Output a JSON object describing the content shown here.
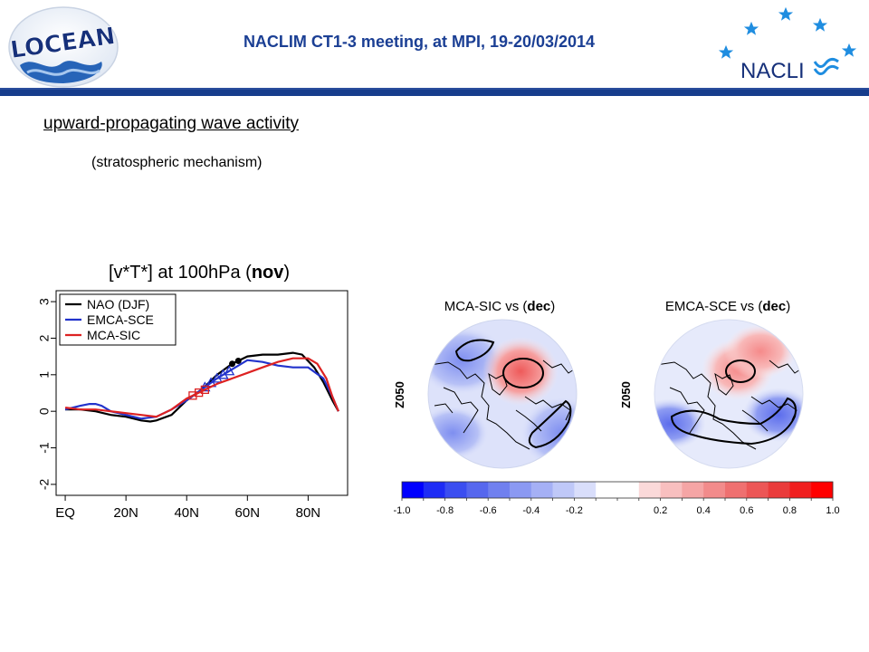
{
  "header": {
    "title": "NACLIM CT1-3 meeting, at MPI, 19-20/03/2014",
    "logo_left_text": "LOCEAN",
    "logo_right_text": "NACLI"
  },
  "slide": {
    "heading": "upward-propagating  wave activity",
    "subheading": "(stratospheric mechanism)"
  },
  "chart_data": [
    {
      "type": "line",
      "title_prefix": "[v*T*] at 100hPa (",
      "title_bold": "nov",
      "title_suffix": ")",
      "xlabel": "",
      "ylabel": "",
      "xlim": [
        -3,
        93
      ],
      "ylim": [
        -2.3,
        3.3
      ],
      "x_tick_values": [
        0,
        20,
        40,
        60,
        80
      ],
      "x_tick_labels": [
        "EQ",
        "20N",
        "40N",
        "60N",
        "80N"
      ],
      "y_tick_values": [
        -2,
        -1,
        0,
        1,
        2,
        3
      ],
      "y_tick_labels": [
        "-2",
        "-1",
        "0",
        "1",
        "2",
        "3"
      ],
      "grid": false,
      "legend_position": "top-left",
      "series": [
        {
          "name": "NAO (DJF)",
          "color": "#000000",
          "marker": "circle",
          "marker_x": [
            55,
            57
          ],
          "x": [
            0,
            5,
            10,
            15,
            20,
            25,
            28,
            30,
            35,
            40,
            45,
            50,
            55,
            60,
            65,
            70,
            75,
            78,
            82,
            85,
            88,
            90
          ],
          "y": [
            0.05,
            0.05,
            0.0,
            -0.1,
            -0.15,
            -0.25,
            -0.28,
            -0.25,
            -0.1,
            0.3,
            0.6,
            1.0,
            1.3,
            1.5,
            1.55,
            1.55,
            1.6,
            1.55,
            1.2,
            0.8,
            0.3,
            0.0
          ]
        },
        {
          "name": "EMCA-SCE",
          "color": "#2233cc",
          "marker": "triangle",
          "marker_x": [
            46,
            48,
            50,
            52,
            54
          ],
          "x": [
            0,
            5,
            8,
            10,
            12,
            15,
            20,
            25,
            30,
            35,
            40,
            45,
            50,
            55,
            60,
            65,
            70,
            75,
            80,
            85,
            88,
            90
          ],
          "y": [
            0.05,
            0.15,
            0.2,
            0.2,
            0.15,
            0.0,
            -0.1,
            -0.2,
            -0.15,
            0.05,
            0.3,
            0.6,
            0.9,
            1.15,
            1.4,
            1.35,
            1.25,
            1.2,
            1.2,
            0.9,
            0.4,
            0.0
          ]
        },
        {
          "name": "MCA-SIC",
          "color": "#dd2222",
          "marker": "square",
          "marker_x": [
            42,
            44,
            46
          ],
          "x": [
            0,
            5,
            10,
            15,
            20,
            25,
            30,
            35,
            40,
            45,
            50,
            55,
            60,
            65,
            70,
            75,
            80,
            83,
            86,
            88,
            90
          ],
          "y": [
            0.1,
            0.05,
            0.05,
            0.0,
            -0.05,
            -0.1,
            -0.15,
            0.05,
            0.35,
            0.55,
            0.75,
            0.9,
            1.05,
            1.2,
            1.35,
            1.45,
            1.45,
            1.3,
            0.9,
            0.4,
            0.0
          ]
        }
      ]
    },
    {
      "type": "heatmap",
      "title_prefix": "MCA-SIC vs (",
      "title_bold": "dec",
      "title_suffix": ")",
      "ylabel": "Z050",
      "projection": "polar-stereographic"
    },
    {
      "type": "heatmap",
      "title_prefix": "EMCA-SCE vs (",
      "title_bold": "dec",
      "title_suffix": ")",
      "ylabel": "Z050",
      "projection": "polar-stereographic"
    }
  ],
  "colorbar": {
    "levels": [
      -1.0,
      -0.9,
      -0.8,
      -0.7,
      -0.6,
      -0.5,
      -0.4,
      -0.3,
      -0.2,
      -0.1,
      0.0,
      0.1,
      0.2,
      0.3,
      0.4,
      0.5,
      0.6,
      0.7,
      0.8,
      0.9,
      1.0
    ],
    "colors": [
      "#0000ff",
      "#1e2cf5",
      "#3b4ef0",
      "#5667ee",
      "#7080ef",
      "#8b99f2",
      "#a5b0f5",
      "#bfc8f8",
      "#d9defb",
      "#ffffff",
      "#ffffff",
      "#fbd9d9",
      "#f8bfbf",
      "#f5a5a5",
      "#f28b8b",
      "#ef7070",
      "#ec5656",
      "#ea3b3b",
      "#f01e1e",
      "#ff0000"
    ],
    "tick_values": [
      -1.0,
      -0.8,
      -0.6,
      -0.4,
      -0.2,
      0.2,
      0.4,
      0.6,
      0.8,
      1.0
    ],
    "tick_labels": [
      "-1.0",
      "-0.8",
      "-0.6",
      "-0.4",
      "-0.2",
      "0.2",
      "0.4",
      "0.6",
      "0.8",
      "1.0"
    ]
  },
  "colors": {
    "header_blue": "#1b3f94",
    "rule_blue": "#163d8c",
    "star_blue": "#1f8de0",
    "logo_navy": "#16307a"
  }
}
